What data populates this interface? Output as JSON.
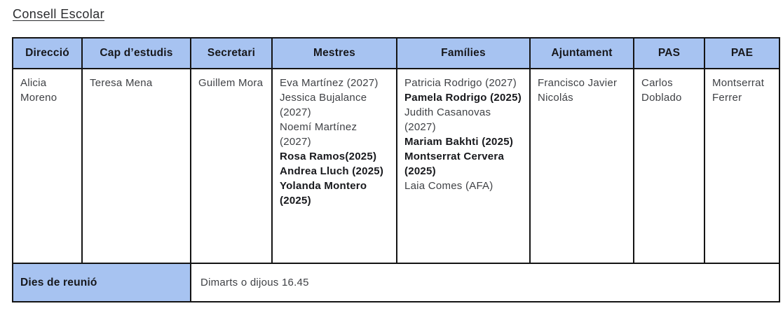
{
  "title": "Consell Escolar",
  "colors": {
    "header_bg": "#a7c3f1",
    "border": "#141414",
    "body_text": "#3f4145",
    "strong_text": "#17181c"
  },
  "table": {
    "headers": [
      "Direcció",
      "Cap d’estudis",
      "Secretari",
      "Mestres",
      "Famílies",
      "Ajuntament",
      "PAS",
      "PAE"
    ],
    "cells": {
      "direccio": [
        {
          "text": "Alicia Moreno",
          "bold": false
        }
      ],
      "cap_destudis": [
        {
          "text": "Teresa Mena",
          "bold": false
        }
      ],
      "secretari": [
        {
          "text": "Guillem Mora",
          "bold": false
        }
      ],
      "mestres": [
        {
          "text": "Eva Martínez (2027)",
          "bold": false
        },
        {
          "text": "Jessica Bujalance (2027)",
          "bold": false
        },
        {
          "text": "Noemí Martínez (2027)",
          "bold": false
        },
        {
          "text": "Rosa Ramos(2025)",
          "bold": true
        },
        {
          "text": "Andrea Lluch (2025)",
          "bold": true
        },
        {
          "text": "Yolanda Montero (2025)",
          "bold": true
        }
      ],
      "families": [
        {
          "text": "Patricia Rodrigo (2027)",
          "bold": false
        },
        {
          "text": "Pamela Rodrigo (2025)",
          "bold": true
        },
        {
          "text": "Judith Casanovas (2027)",
          "bold": false
        },
        {
          "text": "Mariam Bakhti (2025)",
          "bold": true
        },
        {
          "text": "Montserrat Cervera (2025)",
          "bold": true
        },
        {
          "text": "Laia Comes (AFA)",
          "bold": false
        }
      ],
      "ajuntament": [
        {
          "text": "Francisco Javier Nicolás",
          "bold": false
        }
      ],
      "pas": [
        {
          "text": "Carlos Doblado",
          "bold": false
        }
      ],
      "pae": [
        {
          "text": "Montserrat Ferrer",
          "bold": false
        }
      ]
    },
    "footer": {
      "label": "Dies de reunió",
      "value": "Dimarts o dijous 16.45"
    }
  }
}
